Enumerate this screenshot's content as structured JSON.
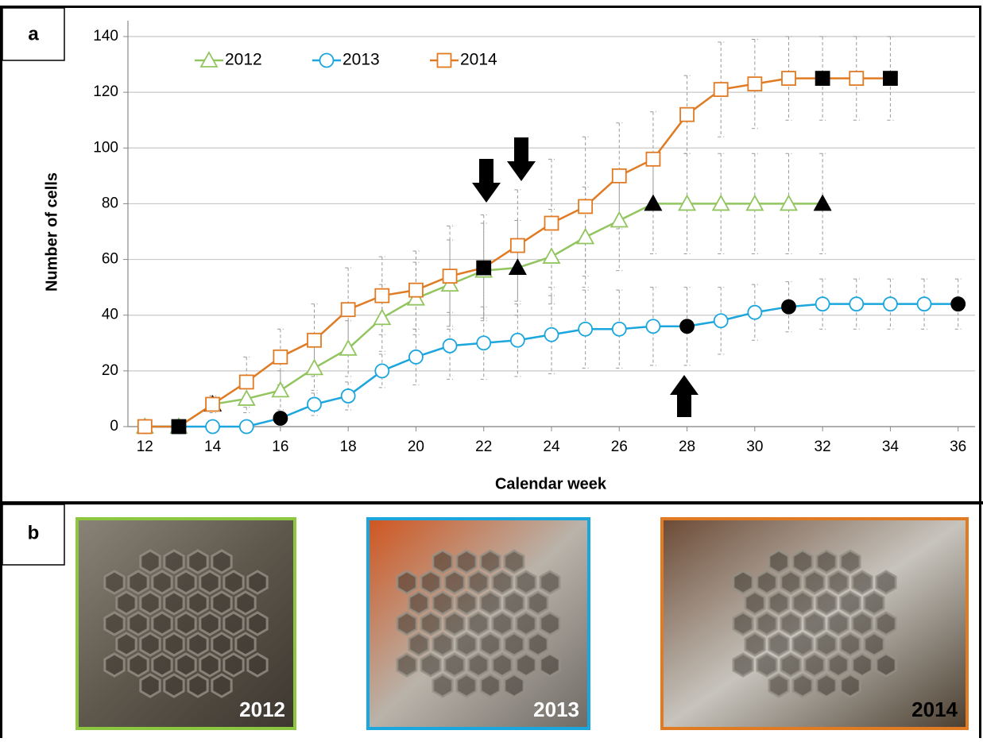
{
  "chart_data": {
    "type": "line",
    "panel_label": "a",
    "xlabel": "Calendar week",
    "ylabel": "Number of cells",
    "xlim": [
      11.5,
      36.5
    ],
    "xticks": [
      12,
      14,
      16,
      18,
      20,
      22,
      24,
      26,
      28,
      30,
      32,
      34,
      36
    ],
    "ylim": [
      0,
      140
    ],
    "yticks": [
      0,
      20,
      40,
      60,
      80,
      100,
      120,
      140
    ],
    "grid": true,
    "series": [
      {
        "name": "2012",
        "color": "#92c560",
        "marker": "triangle",
        "x": [
          12,
          13,
          14,
          15,
          16,
          17,
          18,
          19,
          20,
          21,
          22,
          23,
          24,
          25,
          26,
          27,
          28,
          29,
          30,
          31,
          32
        ],
        "values": [
          0,
          0,
          8,
          10,
          13,
          21,
          28,
          39,
          46,
          51,
          56,
          57,
          61,
          68,
          74,
          80,
          80,
          80,
          80,
          80,
          80
        ],
        "errors": [
          null,
          null,
          3,
          5,
          7,
          8,
          10,
          12,
          13,
          16,
          17,
          17,
          17,
          18,
          18,
          18,
          18,
          18,
          18,
          18,
          18
        ],
        "fills": [
          "#fff",
          "#fff",
          "#000",
          "#fff",
          "#fff",
          "#fff",
          "#fff",
          "#fff",
          "#fff",
          "#fff",
          "#fff",
          "#000",
          "#fff",
          "#fff",
          "#fff",
          "#000",
          "#fff",
          "#fff",
          "#fff",
          "#fff",
          "#000"
        ]
      },
      {
        "name": "2013",
        "color": "#1ba6dd",
        "marker": "circle",
        "x": [
          12,
          13,
          14,
          15,
          16,
          17,
          18,
          19,
          20,
          21,
          22,
          23,
          24,
          25,
          26,
          27,
          28,
          29,
          30,
          31,
          32,
          33,
          34,
          35,
          36
        ],
        "values": [
          0,
          0,
          0,
          0,
          3,
          8,
          11,
          20,
          25,
          29,
          30,
          31,
          33,
          35,
          35,
          36,
          36,
          38,
          41,
          43,
          44,
          44,
          44,
          44,
          44
        ],
        "errors": [
          null,
          null,
          null,
          null,
          2,
          4,
          5,
          6,
          10,
          12,
          13,
          13,
          14,
          14,
          14,
          14,
          14,
          12,
          10,
          9,
          9,
          9,
          9,
          9,
          9
        ],
        "fills": [
          "#fff",
          "#fff",
          "#fff",
          "#fff",
          "#000",
          "#fff",
          "#fff",
          "#fff",
          "#fff",
          "#fff",
          "#fff",
          "#fff",
          "#fff",
          "#fff",
          "#fff",
          "#fff",
          "#000",
          "#fff",
          "#fff",
          "#000",
          "#fff",
          "#fff",
          "#fff",
          "#fff",
          "#000"
        ]
      },
      {
        "name": "2014",
        "color": "#e07b24",
        "marker": "square",
        "x": [
          12,
          13,
          14,
          15,
          16,
          17,
          18,
          19,
          20,
          21,
          22,
          23,
          24,
          25,
          26,
          27,
          28,
          29,
          30,
          31,
          32,
          33,
          34
        ],
        "values": [
          0,
          0,
          8,
          16,
          25,
          31,
          42,
          47,
          49,
          54,
          57,
          65,
          73,
          79,
          90,
          96,
          112,
          121,
          123,
          125,
          125,
          125,
          125
        ],
        "errors": [
          null,
          null,
          3,
          9,
          10,
          13,
          15,
          14,
          14,
          18,
          19,
          20,
          23,
          25,
          19,
          17,
          14,
          17,
          16,
          15,
          15,
          15,
          15
        ],
        "fills": [
          "#fff",
          "#000",
          "#fff",
          "#fff",
          "#fff",
          "#fff",
          "#fff",
          "#fff",
          "#fff",
          "#fff",
          "#000",
          "#fff",
          "#fff",
          "#fff",
          "#fff",
          "#fff",
          "#fff",
          "#fff",
          "#fff",
          "#fff",
          "#000",
          "#fff",
          "#000"
        ]
      }
    ]
  },
  "panel_b": {
    "label": "b",
    "photos": [
      {
        "label": "2012",
        "border": "#8dc63f",
        "label_color": "#fff"
      },
      {
        "label": "2013",
        "border": "#1ba6dd",
        "label_color": "#fff"
      },
      {
        "label": "2014",
        "border": "#e07b24",
        "label_color": "#000"
      }
    ]
  }
}
